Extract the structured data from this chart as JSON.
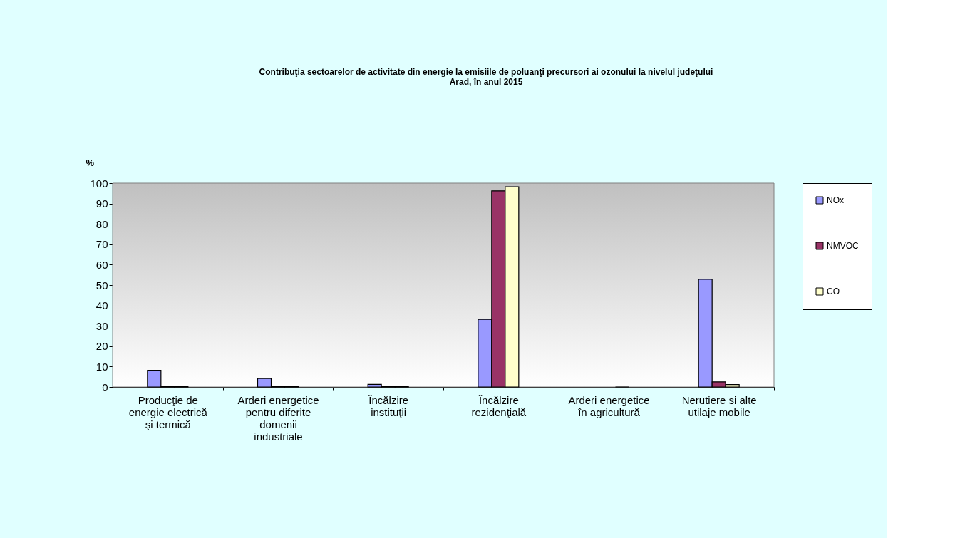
{
  "chart_data": {
    "type": "bar",
    "title": "Contribuţia sectoarelor de activitate din energie la emisiile de poluanţi precursori ai ozonului la nivelul judeţului Arad, în anul 2015",
    "ylabel": "%",
    "categories": [
      "Producţie de energie electrică şi termică",
      "Arderi energetice pentru diferite domenii industriale",
      "Încălzire instituţii",
      "Încălzire rezidenţială",
      "Arderi energetice în agricultură",
      "Nerutiere si alte utilaje mobile"
    ],
    "series": [
      {
        "name": "NOx",
        "color": "#9999ff",
        "values": [
          8.2,
          4.1,
          1.3,
          33.2,
          null,
          52.8
        ]
      },
      {
        "name": "NMVOC",
        "color": "#993366",
        "values": [
          0.3,
          0.3,
          0.4,
          96.2,
          null,
          2.5
        ]
      },
      {
        "name": "CO",
        "color": "#ffffcc",
        "values": [
          0.2,
          0.3,
          0.2,
          98.2,
          0.0,
          1.2
        ]
      }
    ],
    "ylim": [
      0,
      100
    ],
    "yticks": [
      0,
      10,
      20,
      30,
      40,
      50,
      60,
      70,
      80,
      90,
      100
    ],
    "grid": false,
    "legend": "right"
  }
}
